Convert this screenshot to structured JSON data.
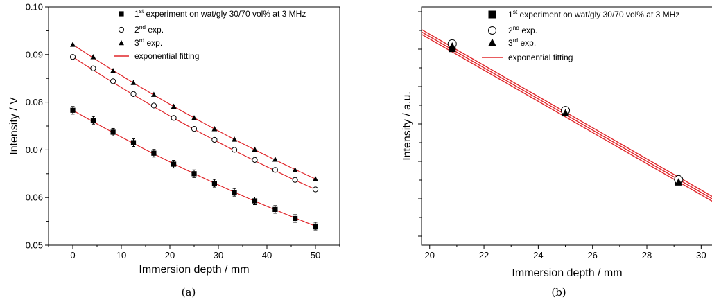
{
  "chart_data": [
    {
      "type": "scatter",
      "caption": "(a)",
      "xlabel": "Immersion depth / mm",
      "ylabel": "Intensity / V",
      "xlim": [
        -5,
        55
      ],
      "ylim": [
        0.05,
        0.1
      ],
      "xticks": [
        0,
        10,
        20,
        30,
        40,
        50
      ],
      "yticks": [
        0.05,
        0.06,
        0.07,
        0.08,
        0.09,
        0.1
      ],
      "ytick_labels": [
        "0.05",
        "0.06",
        "0.07",
        "0.08",
        "0.09",
        "0.10"
      ],
      "legend_position": "top-right",
      "legend": [
        {
          "marker": "square",
          "pre": "1",
          "sup": "st",
          "post": " experiment on wat/gly 30/70 vol% at 3 MHz"
        },
        {
          "marker": "circle",
          "pre": "2",
          "sup": "nd",
          "post": " exp."
        },
        {
          "marker": "triangle",
          "pre": "3",
          "sup": "rd",
          "post": " exp."
        },
        {
          "marker": "line",
          "pre": "exponential fitting",
          "sup": "",
          "post": ""
        }
      ],
      "fit_color": "#e0262a",
      "series": [
        {
          "marker": "square",
          "x": [
            0,
            4.2,
            8.3,
            12.5,
            16.7,
            20.8,
            25,
            29.2,
            33.3,
            37.5,
            41.7,
            45.8,
            50
          ],
          "y": [
            0.0783,
            0.0762,
            0.0737,
            0.0715,
            0.0693,
            0.067,
            0.065,
            0.063,
            0.0611,
            0.0593,
            0.0575,
            0.0556,
            0.054
          ]
        },
        {
          "marker": "circle",
          "x": [
            0,
            4.2,
            8.3,
            12.5,
            16.7,
            20.8,
            25,
            29.2,
            33.3,
            37.5,
            41.7,
            45.8,
            50
          ],
          "y": [
            0.0895,
            0.0871,
            0.0844,
            0.0817,
            0.0793,
            0.0767,
            0.0744,
            0.0721,
            0.07,
            0.0679,
            0.0658,
            0.0637,
            0.0617
          ]
        },
        {
          "marker": "triangle",
          "x": [
            0,
            4.2,
            8.3,
            12.5,
            16.7,
            20.8,
            25,
            29.2,
            33.3,
            37.5,
            41.7,
            45.8,
            50
          ],
          "y": [
            0.0921,
            0.0895,
            0.0866,
            0.0841,
            0.0816,
            0.0791,
            0.0767,
            0.0744,
            0.0722,
            0.0701,
            0.068,
            0.0658,
            0.0639
          ]
        }
      ]
    },
    {
      "type": "scatter",
      "caption": "(b)",
      "xlabel": "Immersion depth / mm",
      "ylabel": "Intensity / a.u.",
      "xlim": [
        19.7,
        30.4
      ],
      "ylim": [
        0,
        10
      ],
      "xticks": [
        20,
        22,
        24,
        26,
        28,
        30
      ],
      "ytick_labels": [],
      "legend_position": "top-right",
      "legend": [
        {
          "marker": "square",
          "pre": "1",
          "sup": "st",
          "post": " experiment on wat/gly 30/70 vol% at 3 MHz"
        },
        {
          "marker": "circle",
          "pre": "2",
          "sup": "nd",
          "post": " exp."
        },
        {
          "marker": "triangle",
          "pre": "3",
          "sup": "rd",
          "post": " exp."
        },
        {
          "marker": "line",
          "pre": "exponential fitting",
          "sup": "",
          "post": ""
        }
      ],
      "fit_color": "#e0262a",
      "fits": [
        {
          "x": [
            19.7,
            30.4
          ],
          "y": [
            9.05,
            2.05
          ]
        },
        {
          "x": [
            19.7,
            30.4
          ],
          "y": [
            8.95,
            1.95
          ]
        },
        {
          "x": [
            19.7,
            30.4
          ],
          "y": [
            8.85,
            1.85
          ]
        }
      ],
      "series": [
        {
          "marker": "square",
          "x": [
            20.83,
            25.0,
            29.17
          ],
          "y": [
            8.25,
            5.55,
            2.65
          ]
        },
        {
          "marker": "circle",
          "x": [
            20.83,
            25.0,
            29.17
          ],
          "y": [
            8.45,
            5.65,
            2.75
          ]
        },
        {
          "marker": "triangle",
          "x": [
            20.83,
            25.0,
            29.17
          ],
          "y": [
            8.35,
            5.55,
            2.65
          ]
        }
      ]
    }
  ]
}
